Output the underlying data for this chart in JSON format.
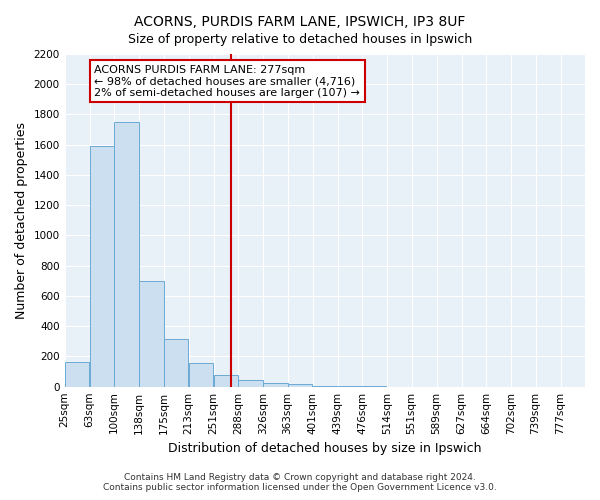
{
  "title1": "ACORNS, PURDIS FARM LANE, IPSWICH, IP3 8UF",
  "title2": "Size of property relative to detached houses in Ipswich",
  "xlabel": "Distribution of detached houses by size in Ipswich",
  "ylabel": "Number of detached properties",
  "bar_color": "#ccdff0",
  "bar_edge_color": "#6aaad4",
  "bins_labels": [
    "25sqm",
    "63sqm",
    "100sqm",
    "138sqm",
    "175sqm",
    "213sqm",
    "251sqm",
    "288sqm",
    "326sqm",
    "363sqm",
    "401sqm",
    "439sqm",
    "476sqm",
    "514sqm",
    "551sqm",
    "589sqm",
    "627sqm",
    "664sqm",
    "702sqm",
    "739sqm",
    "777sqm"
  ],
  "values": [
    160,
    1590,
    1750,
    700,
    315,
    155,
    80,
    45,
    25,
    15,
    5,
    5,
    2,
    0,
    0,
    0,
    0,
    0,
    0,
    0,
    0
  ],
  "bin_starts": [
    25,
    63,
    100,
    138,
    175,
    213,
    251,
    288,
    326,
    363,
    401,
    439,
    476,
    514,
    551,
    589,
    627,
    664,
    702,
    739,
    777
  ],
  "bin_width": 37,
  "property_size": 277,
  "vline_color": "#cc0000",
  "annotation_box_edge": "#cc0000",
  "annotation_text_line1": "ACORNS PURDIS FARM LANE: 277sqm",
  "annotation_text_line2": "← 98% of detached houses are smaller (4,716)",
  "annotation_text_line3": "2% of semi-detached houses are larger (107) →",
  "ylim": [
    0,
    2200
  ],
  "yticks": [
    0,
    200,
    400,
    600,
    800,
    1000,
    1200,
    1400,
    1600,
    1800,
    2000,
    2200
  ],
  "footer1": "Contains HM Land Registry data © Crown copyright and database right 2024.",
  "footer2": "Contains public sector information licensed under the Open Government Licence v3.0.",
  "background_color": "#ffffff",
  "plot_bg_color": "#e8f0f8",
  "grid_color": "#ffffff",
  "title_fontsize": 10,
  "subtitle_fontsize": 9,
  "axis_label_fontsize": 9,
  "tick_fontsize": 7.5,
  "footer_fontsize": 6.5,
  "annotation_fontsize": 8
}
